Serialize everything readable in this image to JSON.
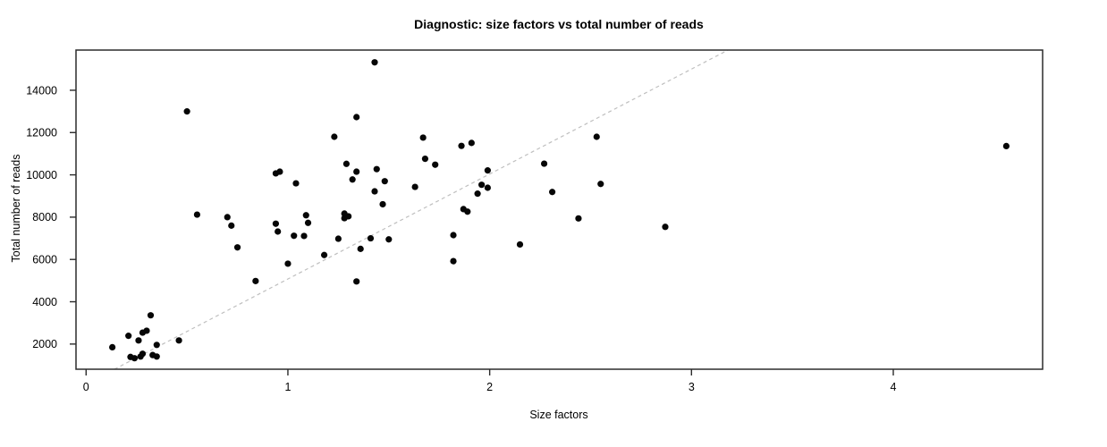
{
  "page": {
    "background": "#ffffff",
    "text_color": "#000000"
  },
  "chart_data": {
    "type": "scatter",
    "title": "Diagnostic: size factors vs total number of reads",
    "xlabel": "Size factors",
    "ylabel": "Total number of reads",
    "xlim": [
      -0.05,
      4.74
    ],
    "ylim": [
      810,
      15900
    ],
    "x_ticks": [
      0,
      1,
      2,
      3,
      4
    ],
    "y_ticks": [
      2000,
      4000,
      6000,
      8000,
      10000,
      12000,
      14000
    ],
    "grid": false,
    "legend": "none",
    "box": true,
    "axis_color": "#2b2b2b",
    "point_style": {
      "shape": "filled-circle",
      "color": "#060606",
      "radius": 3.6
    },
    "reference_line": {
      "type": "abline",
      "slope": 4963,
      "intercept": 113,
      "color": "#bfbfbf",
      "style": "dashed"
    },
    "points": [
      [
        0.13,
        1850
      ],
      [
        0.21,
        2390
      ],
      [
        0.22,
        1390
      ],
      [
        0.24,
        1330
      ],
      [
        0.26,
        2170
      ],
      [
        0.27,
        1410
      ],
      [
        0.28,
        1540
      ],
      [
        0.28,
        2540
      ],
      [
        0.3,
        2630
      ],
      [
        0.32,
        3360
      ],
      [
        0.33,
        1480
      ],
      [
        0.35,
        1960
      ],
      [
        0.35,
        1410
      ],
      [
        0.46,
        2170
      ],
      [
        0.5,
        13000
      ],
      [
        0.55,
        8120
      ],
      [
        0.7,
        8000
      ],
      [
        0.72,
        7600
      ],
      [
        0.75,
        6570
      ],
      [
        0.84,
        4980
      ],
      [
        0.94,
        10070
      ],
      [
        0.96,
        10150
      ],
      [
        0.94,
        7690
      ],
      [
        0.95,
        7320
      ],
      [
        1.0,
        5800
      ],
      [
        1.03,
        7120
      ],
      [
        1.04,
        9600
      ],
      [
        1.08,
        7110
      ],
      [
        1.09,
        8090
      ],
      [
        1.1,
        7730
      ],
      [
        1.18,
        6210
      ],
      [
        1.23,
        11800
      ],
      [
        1.25,
        6980
      ],
      [
        1.28,
        8170
      ],
      [
        1.3,
        8040
      ],
      [
        1.28,
        7950
      ],
      [
        1.29,
        10520
      ],
      [
        1.32,
        9780
      ],
      [
        1.34,
        12730
      ],
      [
        1.34,
        10150
      ],
      [
        1.34,
        4960
      ],
      [
        1.36,
        6500
      ],
      [
        1.41,
        7000
      ],
      [
        1.43,
        15320
      ],
      [
        1.43,
        9220
      ],
      [
        1.44,
        10270
      ],
      [
        1.47,
        8610
      ],
      [
        1.48,
        9700
      ],
      [
        1.5,
        6950
      ],
      [
        1.63,
        9430
      ],
      [
        1.67,
        11760
      ],
      [
        1.68,
        10760
      ],
      [
        1.73,
        10480
      ],
      [
        1.82,
        7150
      ],
      [
        1.82,
        5920
      ],
      [
        1.86,
        11370
      ],
      [
        1.87,
        8380
      ],
      [
        1.89,
        8260
      ],
      [
        1.91,
        11510
      ],
      [
        1.94,
        9110
      ],
      [
        1.96,
        9530
      ],
      [
        1.99,
        10210
      ],
      [
        1.99,
        9390
      ],
      [
        2.15,
        6710
      ],
      [
        2.27,
        10530
      ],
      [
        2.31,
        9190
      ],
      [
        2.44,
        7940
      ],
      [
        2.53,
        11800
      ],
      [
        2.55,
        9570
      ],
      [
        2.87,
        7540
      ],
      [
        4.56,
        11360
      ]
    ]
  }
}
